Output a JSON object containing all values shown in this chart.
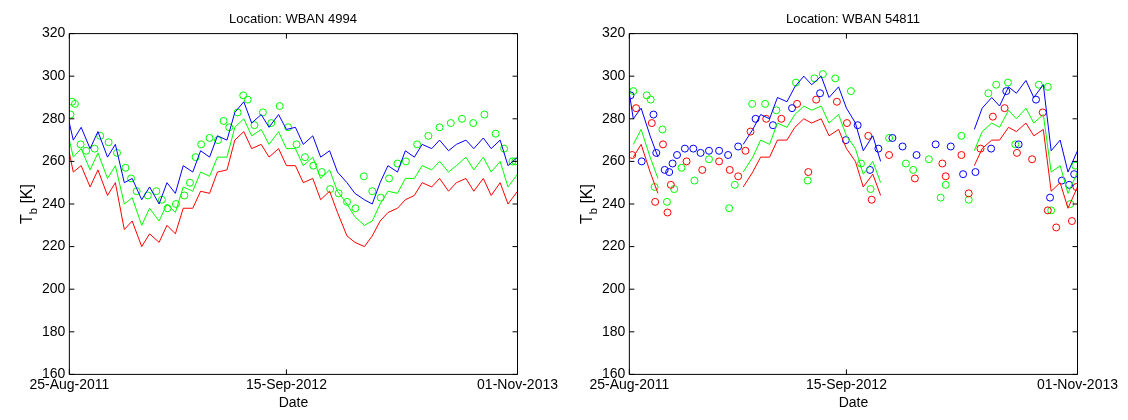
{
  "chart_data": [
    {
      "type": "line",
      "title": "Location: WBAN 4994",
      "xlabel": "Date",
      "ylabel": "T$_{b}$ [K]",
      "grid": false,
      "legend": false,
      "xlim": [
        "2011-08-25",
        "2013-11-01"
      ],
      "xticks": [
        {
          "value": "2011-08-25",
          "label": "25-Aug-2011"
        },
        {
          "value": "2012-09-15",
          "label": "15-Sep-2012"
        },
        {
          "value": "2013-11-01",
          "label": "01-Nov-2013"
        }
      ],
      "ylim": [
        160,
        320
      ],
      "yticks": [
        160,
        180,
        200,
        220,
        240,
        260,
        280,
        300,
        320
      ],
      "x": [
        "2011-08-25",
        "2011-09-01",
        "2011-09-15",
        "2011-10-01",
        "2011-10-15",
        "2011-11-01",
        "2011-11-15",
        "2011-12-01",
        "2011-12-15",
        "2012-01-01",
        "2012-01-15",
        "2012-02-01",
        "2012-02-15",
        "2012-03-01",
        "2012-03-15",
        "2012-04-01",
        "2012-04-15",
        "2012-05-01",
        "2012-05-15",
        "2012-06-01",
        "2012-06-15",
        "2012-07-01",
        "2012-07-15",
        "2012-08-01",
        "2012-08-15",
        "2012-09-01",
        "2012-09-15",
        "2012-10-01",
        "2012-10-15",
        "2012-11-01",
        "2012-11-15",
        "2012-12-01",
        "2012-12-15",
        "2013-01-01",
        "2013-01-15",
        "2013-02-01",
        "2013-02-15",
        "2013-03-01",
        "2013-03-15",
        "2013-04-01",
        "2013-04-15",
        "2013-05-01",
        "2013-05-15",
        "2013-06-01",
        "2013-06-15",
        "2013-07-01",
        "2013-07-15",
        "2013-08-01",
        "2013-08-15",
        "2013-09-01",
        "2013-09-15",
        "2013-10-01",
        "2013-10-15",
        "2013-11-01"
      ],
      "series": [
        {
          "type": "line",
          "marker": "none",
          "color": "#ff0000",
          "values": [
            264,
            255,
            258,
            248,
            256,
            244,
            250,
            228,
            232,
            220,
            226,
            222,
            230,
            226,
            238,
            238,
            246,
            245,
            255,
            256,
            270,
            274,
            266,
            268,
            262,
            266,
            258,
            258,
            250,
            252,
            242,
            246,
            236,
            225,
            222,
            220,
            225,
            232,
            236,
            238,
            242,
            244,
            250,
            248,
            252,
            246,
            250,
            252,
            246,
            252,
            244,
            250,
            240,
            246
          ]
        },
        {
          "type": "line",
          "marker": "none",
          "color": "#00ff00",
          "values": [
            270,
            262,
            266,
            256,
            264,
            252,
            258,
            240,
            243,
            230,
            238,
            232,
            240,
            236,
            248,
            246,
            255,
            253,
            262,
            262,
            276,
            280,
            272,
            275,
            268,
            274,
            266,
            266,
            258,
            262,
            252,
            256,
            246,
            240,
            234,
            230,
            232,
            240,
            246,
            245,
            252,
            252,
            258,
            256,
            260,
            255,
            258,
            262,
            256,
            262,
            255,
            260,
            248,
            254
          ]
        },
        {
          "type": "line",
          "marker": "none",
          "color": "#0000ff",
          "values": [
            278,
            270,
            276,
            266,
            274,
            262,
            268,
            250,
            252,
            242,
            248,
            240,
            250,
            245,
            258,
            255,
            265,
            262,
            272,
            270,
            283,
            288,
            278,
            282,
            276,
            282,
            275,
            276,
            268,
            272,
            262,
            265,
            255,
            250,
            245,
            242,
            240,
            250,
            258,
            255,
            265,
            262,
            268,
            266,
            270,
            265,
            268,
            270,
            266,
            271,
            266,
            270,
            258,
            262
          ]
        },
        {
          "type": "scatter",
          "marker": "circle",
          "color": "#00ff00",
          "x": [
            "2011-08-27",
            "2011-08-30",
            "2011-09-04",
            "2011-09-14",
            "2011-09-24",
            "2011-10-09",
            "2011-10-19",
            "2011-11-03",
            "2011-11-18",
            "2011-12-03",
            "2011-12-13",
            "2011-12-23",
            "2012-01-12",
            "2012-01-27",
            "2012-02-06",
            "2012-02-16",
            "2012-03-02",
            "2012-03-17",
            "2012-03-27",
            "2012-04-06",
            "2012-04-16",
            "2012-05-01",
            "2012-05-16",
            "2012-05-26",
            "2012-06-05",
            "2012-06-20",
            "2012-06-30",
            "2012-07-08",
            "2012-07-20",
            "2012-08-04",
            "2012-08-19",
            "2012-09-03",
            "2012-09-18",
            "2012-10-03",
            "2012-10-18",
            "2012-11-02",
            "2012-11-17",
            "2012-12-02",
            "2012-12-17",
            "2013-01-01",
            "2013-01-16",
            "2013-01-31",
            "2013-02-15",
            "2013-03-02",
            "2013-03-17",
            "2013-04-01",
            "2013-04-16",
            "2013-05-06",
            "2013-05-26",
            "2013-06-15",
            "2013-07-05",
            "2013-07-25",
            "2013-08-14",
            "2013-09-03",
            "2013-09-23",
            "2013-10-08",
            "2013-10-23",
            "2013-10-28"
          ],
          "values": [
            282,
            288,
            287,
            268,
            265,
            266,
            272,
            269,
            264,
            257,
            252,
            246,
            244,
            246,
            242,
            238,
            240,
            244,
            250,
            262,
            268,
            271,
            270,
            279,
            276,
            283,
            291,
            289,
            277,
            283,
            278,
            286,
            276,
            268,
            262,
            258,
            255,
            247,
            245,
            241,
            238,
            253,
            246,
            243,
            252,
            259,
            260,
            268,
            272,
            276,
            278,
            280,
            278,
            282,
            273,
            266,
            260,
            260
          ]
        }
      ]
    },
    {
      "type": "line",
      "title": "Location: WBAN 54811",
      "xlabel": "Date",
      "ylabel": "T$_{b}$ [K]",
      "grid": false,
      "legend": false,
      "xlim": [
        "2011-08-25",
        "2013-11-01"
      ],
      "xticks": [
        {
          "value": "2011-08-25",
          "label": "25-Aug-2011"
        },
        {
          "value": "2012-09-15",
          "label": "15-Sep-2012"
        },
        {
          "value": "2013-11-01",
          "label": "01-Nov-2013"
        }
      ],
      "ylim": [
        160,
        320
      ],
      "yticks": [
        160,
        180,
        200,
        220,
        240,
        260,
        280,
        300,
        320
      ],
      "x": [
        "2011-08-25",
        "2011-09-01",
        "2011-09-15",
        "2011-10-01",
        "2011-10-15",
        "2011-11-01",
        "2011-11-15",
        "2011-12-01",
        "2011-12-15",
        "2012-01-01",
        "2012-01-15",
        "2012-02-01",
        "2012-02-15",
        "2012-03-01",
        "2012-03-15",
        "2012-04-01",
        "2012-04-15",
        "2012-05-01",
        "2012-05-15",
        "2012-06-01",
        "2012-06-15",
        "2012-07-01",
        "2012-07-15",
        "2012-08-01",
        "2012-08-15",
        "2012-09-01",
        "2012-09-15",
        "2012-10-01",
        "2012-10-15",
        "2012-11-01",
        "2012-11-15",
        "2012-12-01",
        "2012-12-15",
        "2013-01-01",
        "2013-01-15",
        "2013-02-01",
        "2013-02-15",
        "2013-03-01",
        "2013-03-15",
        "2013-04-01",
        "2013-04-15",
        "2013-05-01",
        "2013-05-15",
        "2013-06-01",
        "2013-06-15",
        "2013-07-01",
        "2013-07-15",
        "2013-08-01",
        "2013-08-15",
        "2013-09-01",
        "2013-09-15",
        "2013-10-01",
        "2013-10-15",
        "2013-11-01"
      ],
      "series": [
        {
          "type": "line",
          "marker": "none",
          "color": "#ff0000",
          "values": [
            null,
            262,
            268,
            255,
            245,
            null,
            null,
            null,
            null,
            null,
            null,
            null,
            null,
            null,
            248,
            255,
            262,
            262,
            270,
            270,
            276,
            280,
            278,
            280,
            272,
            275,
            266,
            260,
            248,
            254,
            244,
            null,
            null,
            null,
            null,
            null,
            null,
            null,
            null,
            null,
            null,
            258,
            266,
            270,
            270,
            276,
            274,
            278,
            272,
            275,
            246,
            250,
            238,
            248
          ]
        },
        {
          "type": "line",
          "marker": "none",
          "color": "#00ff00",
          "values": [
            null,
            268,
            275,
            262,
            252,
            null,
            null,
            null,
            null,
            null,
            null,
            null,
            null,
            null,
            255,
            262,
            270,
            268,
            278,
            276,
            282,
            286,
            284,
            286,
            278,
            282,
            272,
            266,
            254,
            260,
            250,
            null,
            null,
            null,
            null,
            null,
            null,
            null,
            null,
            null,
            null,
            265,
            274,
            278,
            276,
            284,
            280,
            285,
            278,
            282,
            255,
            258,
            245,
            255
          ]
        },
        {
          "type": "line",
          "marker": "none",
          "color": "#0000ff",
          "values": [
            292,
            280,
            285,
            272,
            262,
            null,
            null,
            null,
            null,
            null,
            null,
            null,
            null,
            null,
            268,
            275,
            282,
            280,
            290,
            288,
            295,
            300,
            296,
            300,
            290,
            295,
            285,
            278,
            265,
            272,
            260,
            null,
            null,
            null,
            null,
            null,
            null,
            null,
            null,
            null,
            null,
            275,
            285,
            290,
            286,
            295,
            292,
            298,
            290,
            296,
            265,
            270,
            255,
            265
          ]
        },
        {
          "type": "scatter",
          "marker": "circle",
          "color": "#0000ff",
          "x": [
            "2011-08-27",
            "2011-09-16",
            "2011-10-07",
            "2011-10-12",
            "2011-10-27",
            "2011-11-04",
            "2011-11-10",
            "2011-11-18",
            "2011-12-02",
            "2011-12-17",
            "2011-12-30",
            "2012-01-14",
            "2012-02-01",
            "2012-02-17",
            "2012-03-06",
            "2012-04-06",
            "2012-05-07",
            "2012-06-10",
            "2012-07-30",
            "2012-09-14",
            "2012-10-05",
            "2012-10-27",
            "2012-11-11",
            "2012-12-06",
            "2012-12-24",
            "2013-01-18",
            "2013-02-21",
            "2013-03-20",
            "2013-04-11",
            "2013-05-03",
            "2013-05-31",
            "2013-06-27",
            "2013-07-19",
            "2013-08-19",
            "2013-09-13",
            "2013-10-04",
            "2013-10-17",
            "2013-10-26"
          ],
          "values": [
            291,
            260,
            282,
            264,
            256,
            255,
            259,
            263,
            266,
            266,
            264,
            265,
            265,
            263,
            267,
            280,
            277,
            285,
            292,
            270,
            277,
            256,
            266,
            271,
            267,
            263,
            268,
            267,
            254,
            255,
            266,
            293,
            268,
            289,
            243,
            251,
            249,
            254
          ]
        },
        {
          "type": "scatter",
          "marker": "circle",
          "color": "#ff0000",
          "x": [
            "2011-08-30",
            "2011-09-06",
            "2011-10-04",
            "2011-10-10",
            "2011-10-24",
            "2011-11-01",
            "2011-11-07",
            "2011-12-05",
            "2012-01-02",
            "2012-02-01",
            "2012-02-20",
            "2012-03-06",
            "2012-03-19",
            "2012-03-28",
            "2012-04-25",
            "2012-05-22",
            "2012-06-19",
            "2012-07-09",
            "2012-07-23",
            "2012-08-29",
            "2012-09-16",
            "2012-10-24",
            "2012-10-30",
            "2012-11-30",
            "2013-01-15",
            "2013-03-05",
            "2013-03-11",
            "2013-04-08",
            "2013-04-21",
            "2013-05-12",
            "2013-06-03",
            "2013-06-24",
            "2013-07-16",
            "2013-08-12",
            "2013-08-31",
            "2013-09-09",
            "2013-09-24",
            "2013-10-22",
            "2013-10-30"
          ],
          "values": [
            263,
            285,
            278,
            241,
            268,
            236,
            249,
            260,
            256,
            260,
            256,
            253,
            265,
            274,
            280,
            280,
            287,
            255,
            289,
            288,
            278,
            272,
            242,
            263,
            252,
            259,
            253,
            263,
            245,
            266,
            281,
            285,
            264,
            261,
            283,
            237,
            229,
            232,
            248
          ]
        },
        {
          "type": "scatter",
          "marker": "circle",
          "color": "#00ff00",
          "x": [
            "2011-09-01",
            "2011-09-25",
            "2011-10-02",
            "2011-10-09",
            "2011-10-23",
            "2011-10-31",
            "2011-11-13",
            "2011-11-26",
            "2011-12-19",
            "2012-01-14",
            "2012-02-19",
            "2012-02-29",
            "2012-03-31",
            "2012-04-23",
            "2012-05-13",
            "2012-06-17",
            "2012-07-08",
            "2012-07-20",
            "2012-08-04",
            "2012-08-26",
            "2012-09-23",
            "2012-10-11",
            "2012-10-28",
            "2012-11-30",
            "2012-12-30",
            "2013-01-12",
            "2013-02-09",
            "2013-03-02",
            "2013-03-11",
            "2013-04-08",
            "2013-04-21",
            "2013-05-26",
            "2013-06-09",
            "2013-06-30",
            "2013-07-13",
            "2013-08-24",
            "2013-09-09",
            "2013-09-15",
            "2013-10-19",
            "2013-10-28"
          ],
          "values": [
            293,
            291,
            289,
            248,
            275,
            241,
            247,
            257,
            251,
            261,
            238,
            249,
            287,
            287,
            284,
            297,
            251,
            299,
            301,
            299,
            293,
            259,
            247,
            271,
            259,
            256,
            261,
            243,
            249,
            272,
            242,
            292,
            296,
            297,
            268,
            296,
            295,
            237,
            240,
            258
          ]
        }
      ]
    }
  ]
}
